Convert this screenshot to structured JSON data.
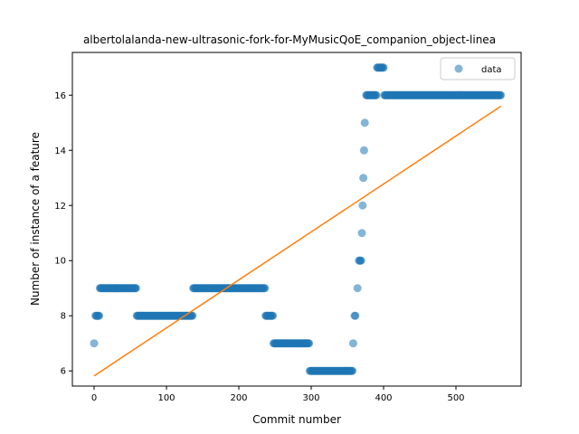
{
  "chart_data": {
    "type": "scatter",
    "title": "albertolalanda-new-ultrasonic-fork-for-MyMusicQoE_companion_object-linea",
    "xlabel": "Commit number",
    "ylabel": "Number of instance of a feature",
    "xlim": [
      -30,
      590
    ],
    "ylim": [
      5.45,
      17.55
    ],
    "xticks": [
      0,
      100,
      200,
      300,
      400,
      500
    ],
    "yticks": [
      6,
      8,
      10,
      12,
      14,
      16
    ],
    "legend": {
      "placement": "top-right",
      "label": "data"
    },
    "grid": false,
    "colors": {
      "points": "#1f77b4",
      "fit": "#ff7f0e"
    },
    "series": [
      {
        "name": "data",
        "kind": "scatter",
        "segments": [
          {
            "x_start": 0,
            "x_end": 0,
            "y": 7
          },
          {
            "x_start": 2,
            "x_end": 7,
            "y": 8
          },
          {
            "x_start": 8,
            "x_end": 58,
            "y": 9
          },
          {
            "x_start": 59,
            "x_end": 136,
            "y": 8
          },
          {
            "x_start": 137,
            "x_end": 236,
            "y": 9
          },
          {
            "x_start": 237,
            "x_end": 247,
            "y": 8
          },
          {
            "x_start": 248,
            "x_end": 297,
            "y": 7
          },
          {
            "x_start": 298,
            "x_end": 357,
            "y": 6
          }
        ],
        "points": [
          {
            "x": 358,
            "y": 7
          },
          {
            "x": 360,
            "y": 8
          },
          {
            "x": 361,
            "y": 8
          },
          {
            "x": 364,
            "y": 9
          },
          {
            "x": 366,
            "y": 10
          },
          {
            "x": 367,
            "y": 10
          },
          {
            "x": 368,
            "y": 10
          },
          {
            "x": 369,
            "y": 10
          },
          {
            "x": 370,
            "y": 11
          },
          {
            "x": 371,
            "y": 12
          },
          {
            "x": 372,
            "y": 13
          },
          {
            "x": 373,
            "y": 14
          },
          {
            "x": 374,
            "y": 15
          }
        ],
        "segments_after": [
          {
            "x_start": 376,
            "x_end": 390,
            "y": 16
          },
          {
            "x_start": 391,
            "x_end": 400,
            "y": 17
          },
          {
            "x_start": 401,
            "x_end": 562,
            "y": 16
          }
        ]
      },
      {
        "kind": "line",
        "x": [
          0,
          562
        ],
        "y": [
          5.82,
          15.6
        ]
      }
    ]
  }
}
